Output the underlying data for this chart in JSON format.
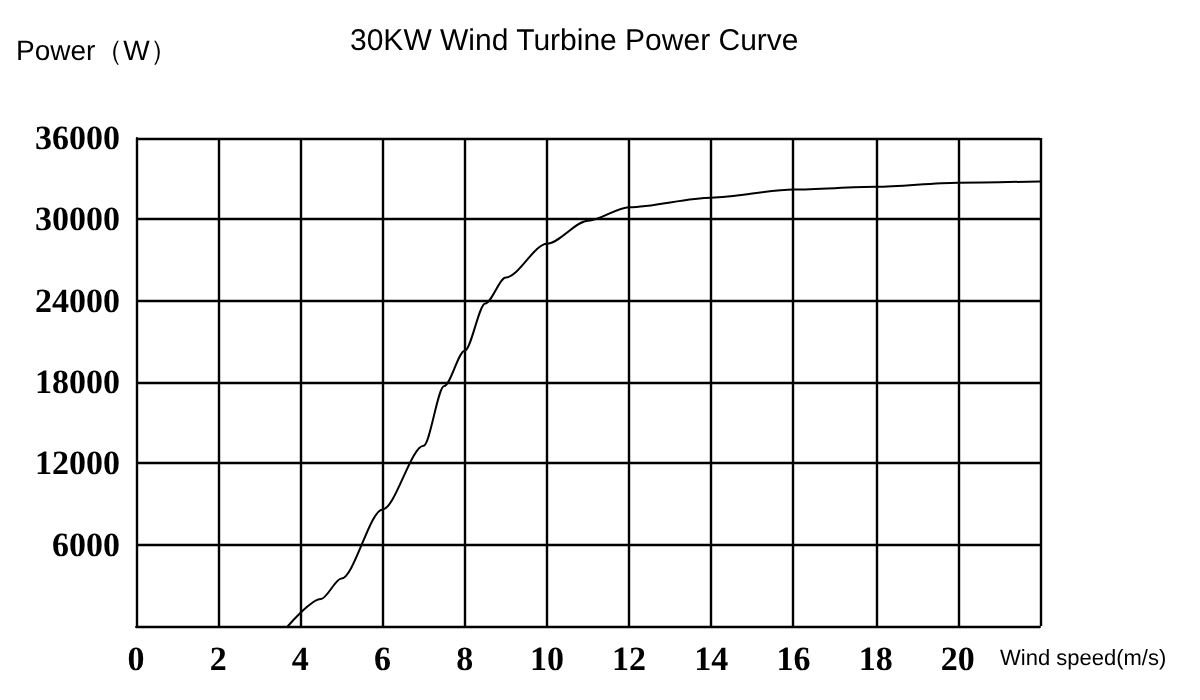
{
  "chart_data": {
    "type": "line",
    "title": "30KW Wind Turbine Power Curve",
    "xlabel": "Wind speed(m/s)",
    "ylabel": "Power（W）",
    "x": [
      3.7,
      4.5,
      5,
      6,
      7,
      7.5,
      8,
      8.5,
      9,
      10,
      11,
      12,
      14,
      16,
      18,
      20,
      22
    ],
    "series": [
      {
        "color": "#000000",
        "values": [
          0,
          2000,
          3500,
          8600,
          13300,
          17700,
          20300,
          23800,
          25700,
          28200,
          29900,
          30900,
          31600,
          32200,
          32400,
          32700,
          32800
        ]
      }
    ],
    "xlim": [
      0,
      22
    ],
    "xticks": [
      0,
      2,
      4,
      6,
      8,
      10,
      12,
      14,
      16,
      18,
      20,
      {
        "value": 22,
        "label": null
      }
    ],
    "ylim": [
      0,
      36000
    ],
    "yticks": [
      {
        "value": 0,
        "label": null
      },
      6000,
      12000,
      18000,
      24000,
      30000,
      36000
    ],
    "grid": true,
    "marker": "none",
    "line_style": "solid"
  }
}
